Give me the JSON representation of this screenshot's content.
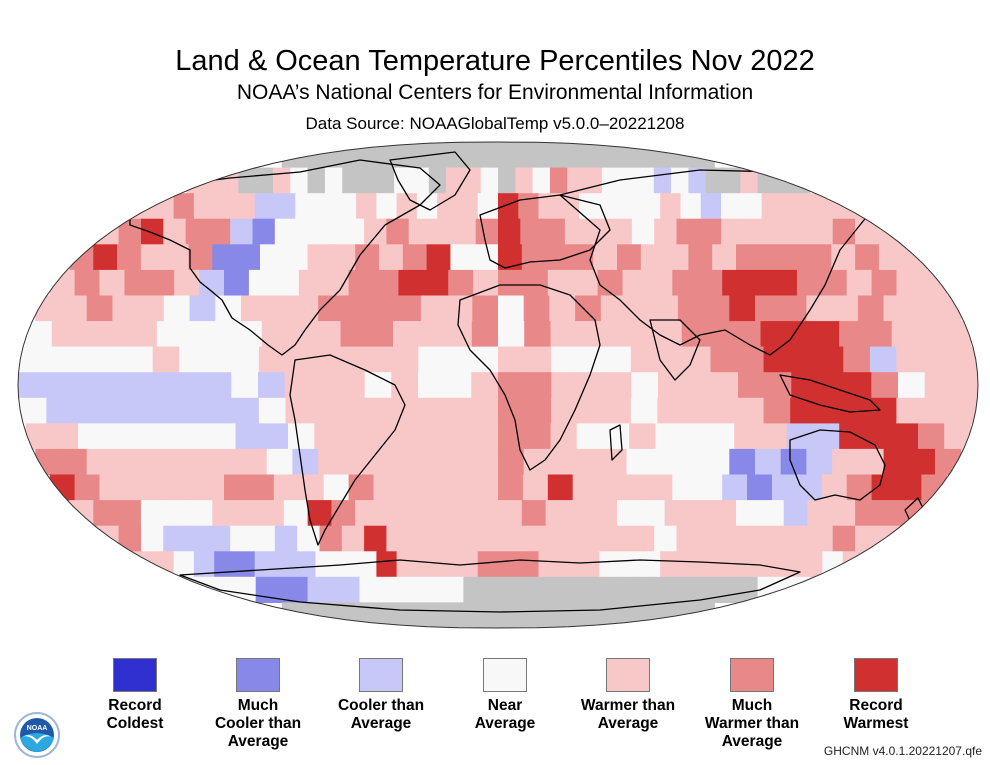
{
  "header": {
    "title": "Land & Ocean Temperature Percentiles Nov 2022",
    "subtitle": "NOAA’s National Centers for Environmental Information",
    "data_source": "Data Source: NOAAGlobalTemp v5.0.0–20221208"
  },
  "legend": {
    "items": [
      {
        "key": "record_coldest",
        "label_line1": "Record",
        "label_line2": "Coldest",
        "label_line3": "",
        "color": "#3030d0"
      },
      {
        "key": "much_cooler",
        "label_line1": "Much",
        "label_line2": "Cooler than",
        "label_line3": "Average",
        "color": "#8888e8"
      },
      {
        "key": "cooler",
        "label_line1": "Cooler than",
        "label_line2": "Average",
        "label_line3": "",
        "color": "#c8c8f8"
      },
      {
        "key": "near",
        "label_line1": "Near",
        "label_line2": "Average",
        "label_line3": "",
        "color": "#f8f8f8"
      },
      {
        "key": "warmer",
        "label_line1": "Warmer than",
        "label_line2": "Average",
        "label_line3": "",
        "color": "#f8c8c8"
      },
      {
        "key": "much_warmer",
        "label_line1": "Much",
        "label_line2": "Warmer than",
        "label_line3": "Average",
        "color": "#e88888"
      },
      {
        "key": "record_warmest",
        "label_line1": "Record",
        "label_line2": "Warmest",
        "label_line3": "",
        "color": "#d03030"
      }
    ]
  },
  "map": {
    "no_data_color": "#c4c4c4",
    "grid_legend": "0=no data, 1=record coldest, 2=much cooler, 3=cooler, 4=near, 5=warmer, 6=much warmer, 7=record warmest; rows north→south (10° lat bands approx), cols west→east (10° lon) starting at 180°W",
    "grid": [
      "000000000000000000000000000000000000",
      "555005404000440554054655444343005000",
      "556555334445454554765544445434455555",
      "567566324444565556766555456655555655",
      "676556224455656744766656556566665655",
      "565665324455667765665565566777665655",
      "556554345556666556465655566766556555",
      "455554444555665556465555566677766555",
      "444445444555555444554445556677763555",
      "333333334355545445665554555667776455",
      "433333333455555555665554555567777555",
      "554444443345555555665445444553377765",
      "665555555435555555655554444232355776",
      "765555566554655555657555544323356776",
      "566444555476555555565554455544355666",
      "564333443465755555555555545555555655",
      "554322333444755556665554445555555545",
      "444422233344444400000000000000000444",
      "000000000000000000000000000000000000"
    ]
  },
  "footer": {
    "version_note": "GHCNM v4.0.1.20221207.qfe",
    "logo_text": "NOAA"
  }
}
